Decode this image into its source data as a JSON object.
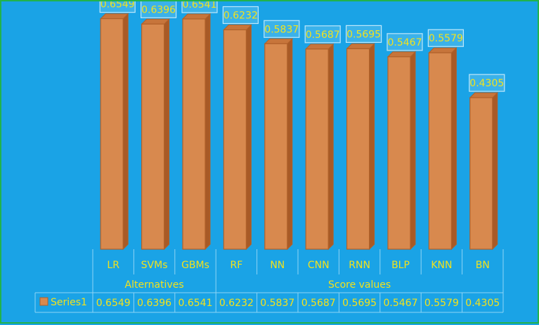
{
  "chart_data": {
    "type": "bar",
    "categories": [
      "LR",
      "SVMs",
      "GBMs",
      "RF",
      "NN",
      "CNN",
      "RNN",
      "BLP",
      "KNN",
      "BN"
    ],
    "series": [
      {
        "name": "Series1",
        "values": [
          0.6549,
          0.6396,
          0.6541,
          0.6232,
          0.5837,
          0.5687,
          0.5695,
          0.5467,
          0.5579,
          0.4305
        ]
      }
    ],
    "data_labels": [
      "0.6549",
      "0.6396",
      "0.6541",
      "0.6232",
      "0.5837",
      "0.5687",
      "0.5695",
      "0.5467",
      "0.5579",
      "0.4305"
    ],
    "table_values": [
      "0.6549",
      "0.6396",
      "0.6541",
      "0.6232",
      "0.5837",
      "0.5687",
      "0.5695",
      "0.5467",
      "0.5579",
      "0.4305"
    ],
    "groups": [
      {
        "label": "Alternatives",
        "span": 3
      },
      {
        "label": "Score values",
        "span": 7
      }
    ],
    "ylim": [
      0,
      0.68
    ],
    "grid": false,
    "legend": "data-table",
    "colors": {
      "bar": "#d8894e",
      "bar_edge": "#b0612a",
      "text": "#f2e21c",
      "table_line": "#8fd4f5"
    }
  }
}
